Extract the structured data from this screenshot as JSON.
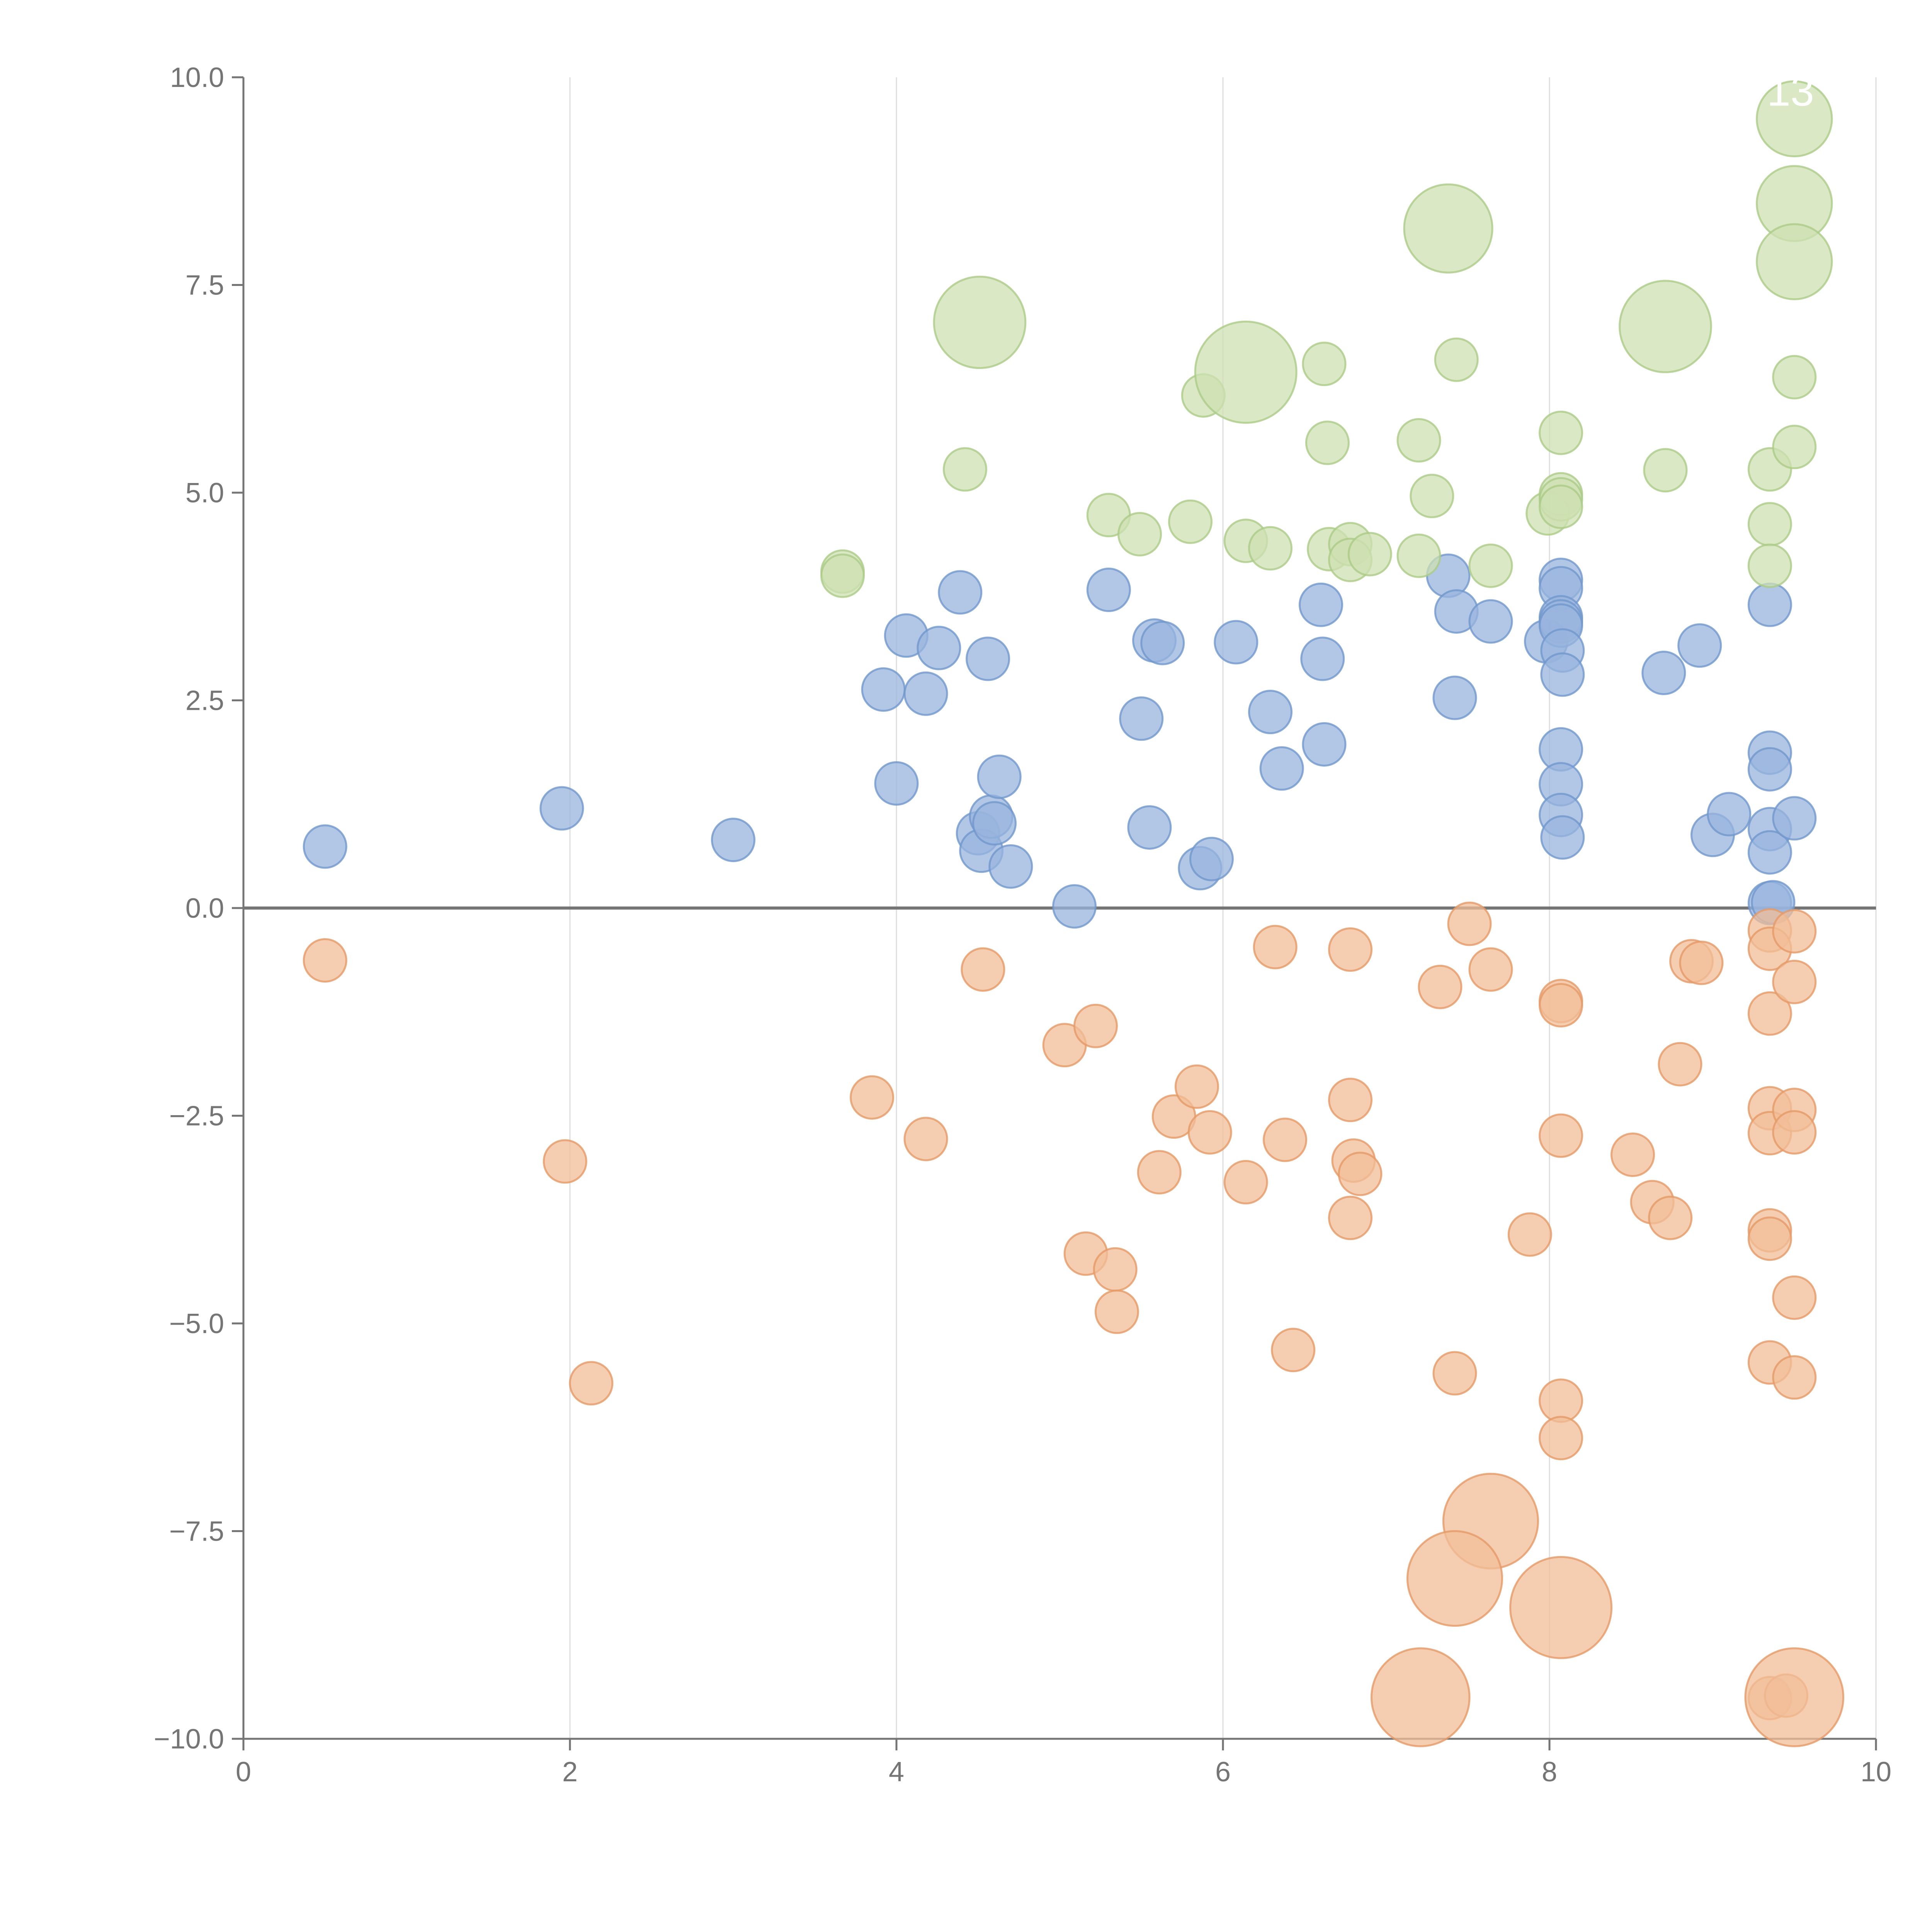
{
  "chart_data": {
    "type": "scatter",
    "xlim": [
      0,
      10
    ],
    "ylim": [
      -10,
      10
    ],
    "x_ticks": [
      "0",
      "2",
      "4",
      "6",
      "8",
      "10"
    ],
    "y_ticks": [
      "10.0",
      "7.5",
      "5.0",
      "2.5",
      "0.0",
      "−2.5",
      "−5.0",
      "−7.5",
      "−10.0"
    ],
    "x_tick_values": [
      0,
      2,
      4,
      6,
      8,
      10
    ],
    "y_tick_values": [
      10,
      7.5,
      5,
      2.5,
      0,
      -2.5,
      -5,
      -7.5,
      -10
    ],
    "grid": "vertical only",
    "zero_line": true,
    "series": [
      {
        "color": "#98b4dd",
        "stroke": "#7197cc",
        "points": [
          [
            0.5,
            0.74
          ],
          [
            1.95,
            1.2
          ],
          [
            3.0,
            0.82
          ],
          [
            3.92,
            2.63
          ],
          [
            4.0,
            1.5
          ],
          [
            4.06,
            3.28
          ],
          [
            4.18,
            2.58
          ],
          [
            4.26,
            3.13
          ],
          [
            4.39,
            3.8
          ],
          [
            4.5,
            0.9
          ],
          [
            4.52,
            0.69
          ],
          [
            4.56,
            3.0
          ],
          [
            4.58,
            1.1
          ],
          [
            4.6,
            1.02
          ],
          [
            4.63,
            1.58
          ],
          [
            4.7,
            0.5
          ],
          [
            5.09,
            0.02
          ],
          [
            5.3,
            3.83
          ],
          [
            5.5,
            2.28
          ],
          [
            5.55,
            0.97
          ],
          [
            5.58,
            3.22
          ],
          [
            5.63,
            3.19
          ],
          [
            5.86,
            0.48
          ],
          [
            5.93,
            0.59
          ],
          [
            6.08,
            3.2
          ],
          [
            6.29,
            2.36
          ],
          [
            6.36,
            1.68
          ],
          [
            6.6,
            3.65
          ],
          [
            6.61,
            3.0
          ],
          [
            6.62,
            1.97
          ],
          [
            7.38,
            4.0
          ],
          [
            7.42,
            2.53
          ],
          [
            7.43,
            3.57
          ],
          [
            7.64,
            3.45
          ],
          [
            7.98,
            3.21
          ],
          [
            8.07,
            3.95
          ],
          [
            8.07,
            3.85
          ],
          [
            8.07,
            3.5
          ],
          [
            8.07,
            3.45
          ],
          [
            8.07,
            3.4
          ],
          [
            8.08,
            3.1
          ],
          [
            8.08,
            2.81
          ],
          [
            8.07,
            1.91
          ],
          [
            8.07,
            1.49
          ],
          [
            8.07,
            1.12
          ],
          [
            8.08,
            0.85
          ],
          [
            8.7,
            2.83
          ],
          [
            8.92,
            3.16
          ],
          [
            9.0,
            0.88
          ],
          [
            9.1,
            1.13
          ],
          [
            9.35,
            3.65
          ],
          [
            9.35,
            1.87
          ],
          [
            9.35,
            1.67
          ],
          [
            9.35,
            0.95
          ],
          [
            9.35,
            0.67
          ],
          [
            9.35,
            0.06
          ],
          [
            9.37,
            0.07
          ],
          [
            9.5,
            1.08
          ]
        ]
      },
      {
        "color": "#f2bd98",
        "stroke": "#e59a66",
        "points": [
          [
            0.5,
            -0.63
          ],
          [
            1.97,
            -3.05
          ],
          [
            2.13,
            -5.72
          ],
          [
            3.85,
            -2.28
          ],
          [
            4.18,
            -2.78
          ],
          [
            4.53,
            -0.74
          ],
          [
            5.03,
            -1.65
          ],
          [
            5.22,
            -1.42
          ],
          [
            5.16,
            -4.16
          ],
          [
            5.34,
            -4.35
          ],
          [
            5.35,
            -4.86
          ],
          [
            5.61,
            -3.18
          ],
          [
            5.7,
            -2.51
          ],
          [
            5.84,
            -2.15
          ],
          [
            5.92,
            -2.7
          ],
          [
            6.14,
            -3.3
          ],
          [
            6.32,
            -0.47
          ],
          [
            6.38,
            -2.79
          ],
          [
            6.43,
            -5.32
          ],
          [
            6.78,
            -0.5
          ],
          [
            6.78,
            -2.31
          ],
          [
            6.8,
            -3.04
          ],
          [
            6.84,
            -3.2
          ],
          [
            6.78,
            -3.73
          ],
          [
            7.33,
            -0.95
          ],
          [
            7.51,
            -0.19
          ],
          [
            7.64,
            -0.74
          ],
          [
            7.42,
            -5.6
          ],
          [
            7.88,
            -3.93
          ],
          [
            8.07,
            -1.12
          ],
          [
            8.07,
            -1.17
          ],
          [
            8.07,
            -2.74
          ],
          [
            8.07,
            -5.93
          ],
          [
            8.07,
            -6.38
          ],
          [
            8.51,
            -2.97
          ],
          [
            8.63,
            -3.54
          ],
          [
            8.74,
            -3.73
          ],
          [
            8.8,
            -1.88
          ],
          [
            8.87,
            -0.64
          ],
          [
            8.93,
            -0.66
          ],
          [
            9.35,
            -0.27
          ],
          [
            9.35,
            -0.49
          ],
          [
            9.35,
            -1.27
          ],
          [
            9.35,
            -2.41
          ],
          [
            9.35,
            -2.71
          ],
          [
            9.35,
            -3.88
          ],
          [
            9.35,
            -3.98
          ],
          [
            9.35,
            -5.47
          ],
          [
            9.5,
            -0.28
          ],
          [
            9.5,
            -0.89
          ],
          [
            9.5,
            -2.43
          ],
          [
            9.5,
            -2.7
          ],
          [
            9.5,
            -4.69
          ],
          [
            9.5,
            -5.65
          ],
          [
            9.35,
            -9.51
          ],
          [
            9.45,
            -9.48
          ]
        ]
      },
      {
        "color": "#cde0b2",
        "stroke": "#abcb87",
        "points": [
          [
            3.67,
            4.05
          ],
          [
            3.67,
            4.0
          ],
          [
            4.42,
            5.28
          ],
          [
            5.3,
            4.73
          ],
          [
            5.49,
            4.5
          ],
          [
            5.8,
            4.65
          ],
          [
            5.88,
            6.17
          ],
          [
            6.14,
            4.42
          ],
          [
            6.29,
            4.33
          ],
          [
            6.62,
            6.55
          ],
          [
            6.64,
            5.6
          ],
          [
            6.65,
            4.32
          ],
          [
            6.78,
            4.38
          ],
          [
            6.78,
            4.19
          ],
          [
            6.9,
            4.26
          ],
          [
            7.2,
            5.63
          ],
          [
            7.2,
            4.24
          ],
          [
            7.28,
            4.96
          ],
          [
            7.43,
            6.6
          ],
          [
            7.64,
            4.12
          ],
          [
            7.99,
            4.75
          ],
          [
            8.07,
            5.72
          ],
          [
            8.07,
            4.98
          ],
          [
            8.07,
            4.92
          ],
          [
            8.07,
            4.83
          ],
          [
            8.71,
            5.27
          ],
          [
            9.35,
            5.28
          ],
          [
            9.35,
            4.62
          ],
          [
            9.35,
            4.12
          ],
          [
            9.5,
            6.39
          ],
          [
            9.5,
            5.55
          ]
        ]
      }
    ],
    "large_bubbles": [
      {
        "series": 2,
        "x": 4.51,
        "y": 7.05,
        "r": 0.28
      },
      {
        "series": 2,
        "x": 6.14,
        "y": 6.45,
        "r": 0.31
      },
      {
        "series": 2,
        "x": 7.38,
        "y": 8.18,
        "r": 0.27
      },
      {
        "series": 2,
        "x": 8.71,
        "y": 7.0,
        "r": 0.28
      },
      {
        "series": 2,
        "x": 9.5,
        "y": 9.5,
        "r": 0.23,
        "label": "13"
      },
      {
        "series": 2,
        "x": 9.5,
        "y": 8.48,
        "r": 0.23
      },
      {
        "series": 2,
        "x": 9.5,
        "y": 7.78,
        "r": 0.23
      },
      {
        "series": 1,
        "x": 7.64,
        "y": -7.38,
        "r": 0.29
      },
      {
        "series": 1,
        "x": 7.42,
        "y": -8.07,
        "r": 0.29
      },
      {
        "series": 1,
        "x": 8.07,
        "y": -8.42,
        "r": 0.31
      },
      {
        "series": 1,
        "x": 7.21,
        "y": -9.5,
        "r": 0.3
      },
      {
        "series": 1,
        "x": 9.5,
        "y": -9.5,
        "r": 0.3
      }
    ]
  }
}
